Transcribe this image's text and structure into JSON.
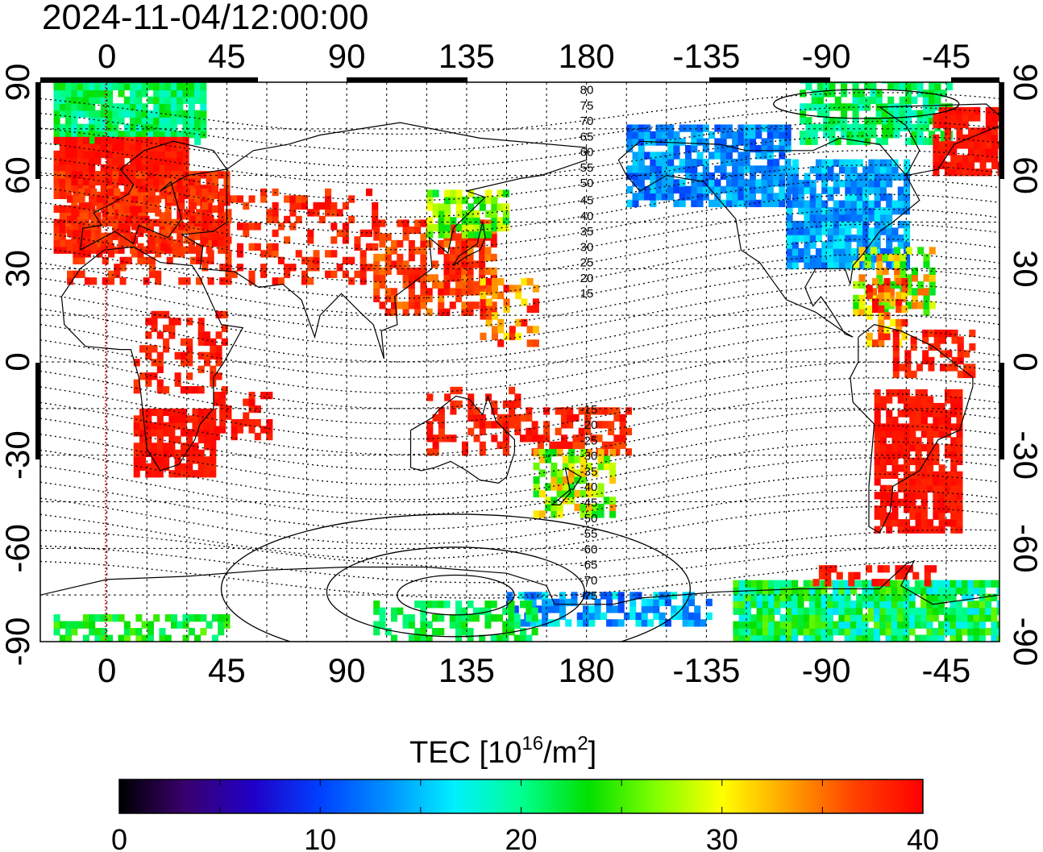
{
  "timestamp": "2024-11-04/12:00:00",
  "x_ticks": [
    "0",
    "45",
    "90",
    "135",
    "180",
    "-135",
    "-90",
    "-45"
  ],
  "y_ticks": [
    "90",
    "60",
    "30",
    "0",
    "-30",
    "-60",
    "-90"
  ],
  "contour_labels": [
    "80",
    "75",
    "70",
    "65",
    "60",
    "55",
    "50",
    "45",
    "40",
    "35",
    "30",
    "25",
    "20",
    "15",
    "-15",
    "-20",
    "-25",
    "-30",
    "-35",
    "-40",
    "-45",
    "-50",
    "-55",
    "-60",
    "-65",
    "-70",
    "-75"
  ],
  "colorbar": {
    "title": "TEC  [10",
    "title_exp": "16",
    "title_unit": "/m",
    "title_unit_exp": "2",
    "title_close": "]",
    "tick_labels": [
      "0",
      "10",
      "20",
      "30",
      "40"
    ],
    "min": 0,
    "max": 40,
    "colors": [
      "#000000",
      "#3a0070",
      "#2000c8",
      "#0040ff",
      "#0090ff",
      "#00f0ff",
      "#00ff90",
      "#00e000",
      "#80ff00",
      "#ffff00",
      "#ffa000",
      "#ff4000",
      "#ff0000"
    ]
  },
  "map": {
    "lon_range": [
      -25,
      335
    ],
    "lat_range": [
      -90,
      90
    ],
    "red_meridian_lon": 0
  }
}
